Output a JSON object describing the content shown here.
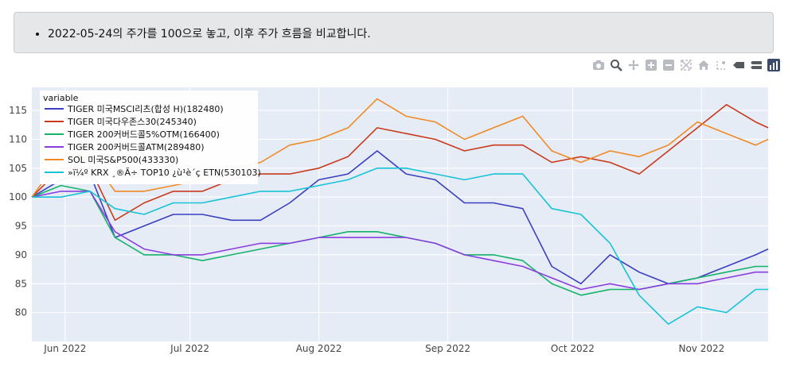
{
  "note": {
    "bullet": "2022-05-24의 주가를 100으로 놓고, 이후 주가 흐름을 비교합니다."
  },
  "modebar": {
    "buttons": [
      "camera-icon",
      "zoom-icon",
      "pan-icon",
      "zoom-in-icon",
      "zoom-out-icon",
      "autoscale-icon",
      "home-icon",
      "spike-icon",
      "hover-closest-icon",
      "hover-compare-icon",
      "plotly-logo-icon"
    ]
  },
  "chart_data": {
    "type": "line",
    "legend_title": "variable",
    "legend_position": "top-left",
    "grid": true,
    "xlim": [
      "2022-05-24",
      "2022-11-17"
    ],
    "ylim": [
      75,
      119
    ],
    "yticks": [
      80,
      85,
      90,
      95,
      100,
      105,
      110,
      115
    ],
    "xticks": [
      {
        "label": "Jun 2022",
        "date": "2022-06-01"
      },
      {
        "label": "Jul 2022",
        "date": "2022-07-01"
      },
      {
        "label": "Aug 2022",
        "date": "2022-08-01"
      },
      {
        "label": "Sep 2022",
        "date": "2022-09-01"
      },
      {
        "label": "Oct 2022",
        "date": "2022-10-01"
      },
      {
        "label": "Nov 2022",
        "date": "2022-11-01"
      }
    ],
    "x": [
      "2022-05-24",
      "2022-05-31",
      "2022-06-07",
      "2022-06-13",
      "2022-06-20",
      "2022-06-27",
      "2022-07-04",
      "2022-07-11",
      "2022-07-18",
      "2022-07-25",
      "2022-08-01",
      "2022-08-08",
      "2022-08-15",
      "2022-08-22",
      "2022-08-29",
      "2022-09-05",
      "2022-09-12",
      "2022-09-19",
      "2022-09-26",
      "2022-10-03",
      "2022-10-10",
      "2022-10-17",
      "2022-10-24",
      "2022-10-31",
      "2022-11-07",
      "2022-11-14",
      "2022-11-17"
    ],
    "series": [
      {
        "name": "TIGER 미국MSCI리츠(합성 H)(182480)",
        "color": "#3b3fbf",
        "values": [
          100,
          103,
          104,
          93,
          95,
          97,
          97,
          96,
          96,
          99,
          103,
          104,
          108,
          104,
          103,
          99,
          99,
          98,
          88,
          85,
          90,
          87,
          85,
          86,
          88,
          90,
          91
        ]
      },
      {
        "name": "TIGER 미국다우존스30(245340)",
        "color": "#c93a1c",
        "values": [
          100,
          105,
          105,
          96,
          99,
          101,
          101,
          103,
          104,
          104,
          105,
          107,
          112,
          111,
          110,
          108,
          109,
          109,
          106,
          107,
          106,
          104,
          108,
          112,
          116,
          113,
          112
        ]
      },
      {
        "name": "TIGER 200커버드콜5%OTM(166400)",
        "color": "#17b26a",
        "values": [
          100,
          102,
          101,
          93,
          90,
          90,
          89,
          90,
          91,
          92,
          93,
          94,
          94,
          93,
          92,
          90,
          90,
          89,
          85,
          83,
          84,
          84,
          85,
          86,
          87,
          88,
          88
        ]
      },
      {
        "name": "TIGER 200커버드콜ATM(289480)",
        "color": "#8a3ee0",
        "values": [
          100,
          101,
          101,
          94,
          91,
          90,
          90,
          91,
          92,
          92,
          93,
          93,
          93,
          93,
          92,
          90,
          89,
          88,
          86,
          84,
          85,
          84,
          85,
          85,
          86,
          87,
          87
        ]
      },
      {
        "name": "SOL 미국S&P500(433330)",
        "color": "#f08a24",
        "values": [
          100,
          107,
          107,
          101,
          101,
          102,
          103,
          105,
          106,
          109,
          110,
          112,
          117,
          114,
          113,
          110,
          112,
          114,
          108,
          106,
          108,
          107,
          109,
          113,
          111,
          109,
          110
        ]
      },
      {
        "name": "»ï¼º KRX ¸®Ã÷ TOP10 ¿ù¹è´ç ETN(530103)",
        "color": "#17c3d6",
        "values": [
          100,
          100,
          101,
          98,
          97,
          99,
          99,
          100,
          101,
          101,
          102,
          103,
          105,
          105,
          104,
          103,
          104,
          104,
          98,
          97,
          92,
          83,
          78,
          81,
          80,
          84,
          84
        ]
      }
    ]
  }
}
